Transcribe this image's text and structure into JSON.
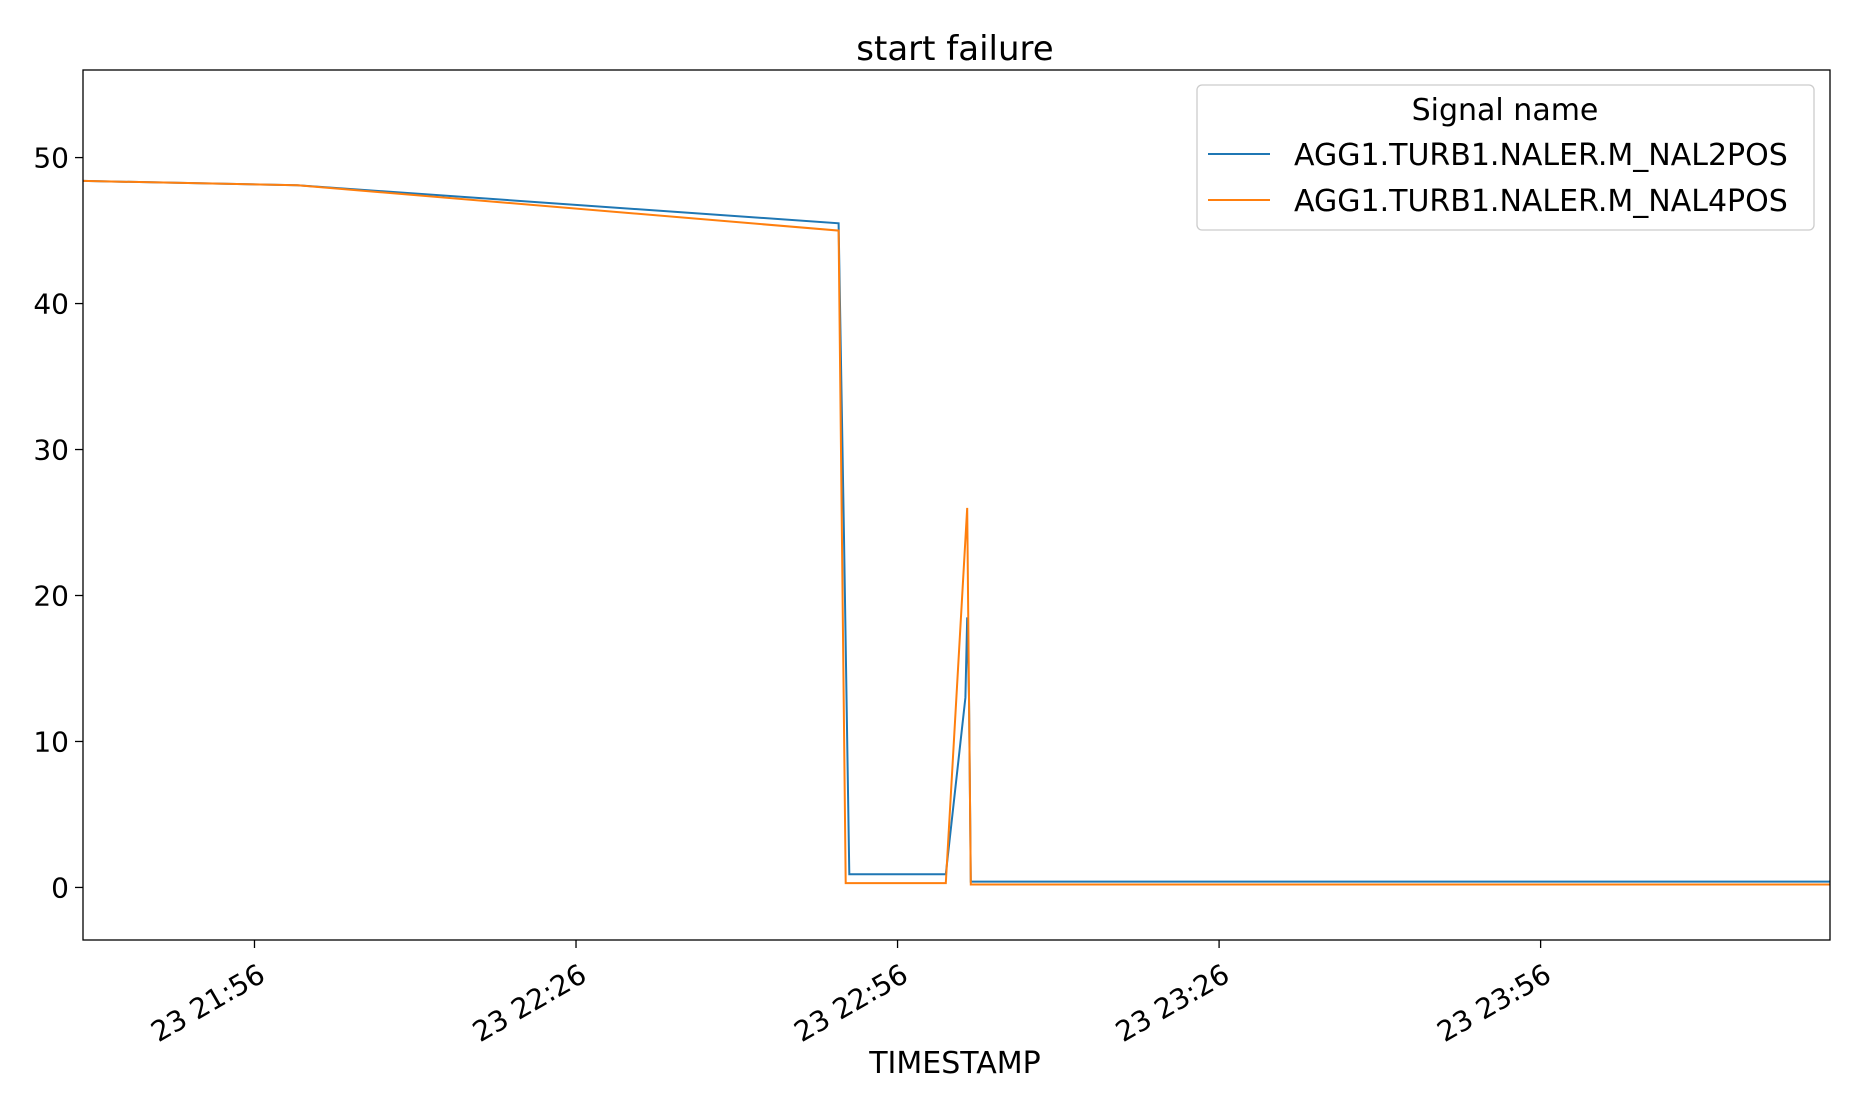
{
  "chart_data": {
    "type": "line",
    "title": "start failure",
    "xlabel": "TIMESTAMP",
    "ylabel": "",
    "grid": false,
    "legend_position": "top-right",
    "legend_title": "Signal name",
    "xlim": [
      "23 21:40",
      "24 00:23"
    ],
    "ylim": [
      -3.6,
      56
    ],
    "x_ticks": [
      {
        "value": "23 21:56",
        "label": "23 21:56"
      },
      {
        "value": "23 22:26",
        "label": "23 22:26"
      },
      {
        "value": "23 22:56",
        "label": "23 22:56"
      },
      {
        "value": "23 23:26",
        "label": "23 23:26"
      },
      {
        "value": "23 23:56",
        "label": "23 23:56"
      }
    ],
    "y_ticks": [
      0,
      10,
      20,
      30,
      40,
      50
    ],
    "series": [
      {
        "name": "AGG1.TURB1.NALER.M_NAL2POS",
        "color": "#1f77b4",
        "points": [
          {
            "x": "23 21:40",
            "y": 48.4
          },
          {
            "x": "23 22:00",
            "y": 48.1
          },
          {
            "x": "23 22:50:30",
            "y": 45.5
          },
          {
            "x": "23 22:51",
            "y": 24.0
          },
          {
            "x": "23 22:51:30",
            "y": 0.9
          },
          {
            "x": "23 23:00:30",
            "y": 0.9
          },
          {
            "x": "23 23:02:20",
            "y": 13.0
          },
          {
            "x": "23 23:02:30",
            "y": 18.5
          },
          {
            "x": "23 23:02:40",
            "y": 13.0
          },
          {
            "x": "23 23:02:50",
            "y": 0.4
          },
          {
            "x": "24 00:23",
            "y": 0.4
          }
        ]
      },
      {
        "name": "AGG1.TURB1.NALER.M_NAL4POS",
        "color": "#ff7f0e",
        "points": [
          {
            "x": "23 21:40",
            "y": 48.4
          },
          {
            "x": "23 22:00",
            "y": 48.1
          },
          {
            "x": "23 22:50:30",
            "y": 45.0
          },
          {
            "x": "23 22:51:10",
            "y": 0.3
          },
          {
            "x": "23 23:00:30",
            "y": 0.3
          },
          {
            "x": "23 23:02:30",
            "y": 26.0
          },
          {
            "x": "23 23:02:50",
            "y": 0.2
          },
          {
            "x": "24 00:23",
            "y": 0.2
          }
        ]
      }
    ]
  }
}
